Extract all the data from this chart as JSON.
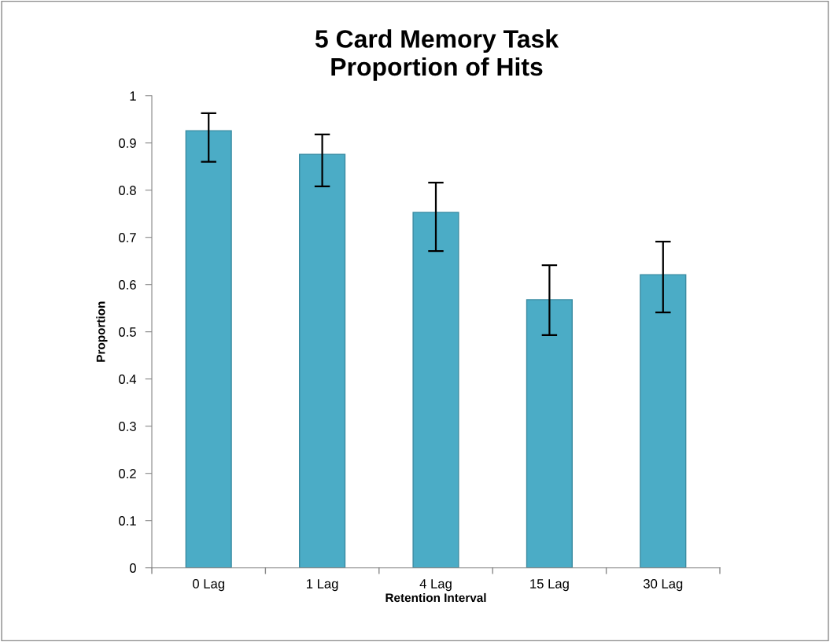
{
  "chart_data": {
    "type": "bar",
    "title": "5 Card Memory Task\nProportion of Hits",
    "xlabel": "Retention Interval",
    "ylabel": "Proportion",
    "categories": [
      "0 Lag",
      "1 Lag",
      "4 Lag",
      "15 Lag",
      "30 Lag"
    ],
    "values": [
      0.926,
      0.876,
      0.753,
      0.568,
      0.621
    ],
    "errors": [
      [
        0.86,
        0.963
      ],
      [
        0.808,
        0.918
      ],
      [
        0.671,
        0.816
      ],
      [
        0.493,
        0.641
      ],
      [
        0.541,
        0.691
      ]
    ],
    "color": "#4bacc6",
    "ylim": [
      0,
      1
    ],
    "yticks": [
      0,
      0.1,
      0.2,
      0.3,
      0.4,
      0.5,
      0.6,
      0.7,
      0.8,
      0.9,
      1
    ],
    "grid": false,
    "legend": false
  }
}
